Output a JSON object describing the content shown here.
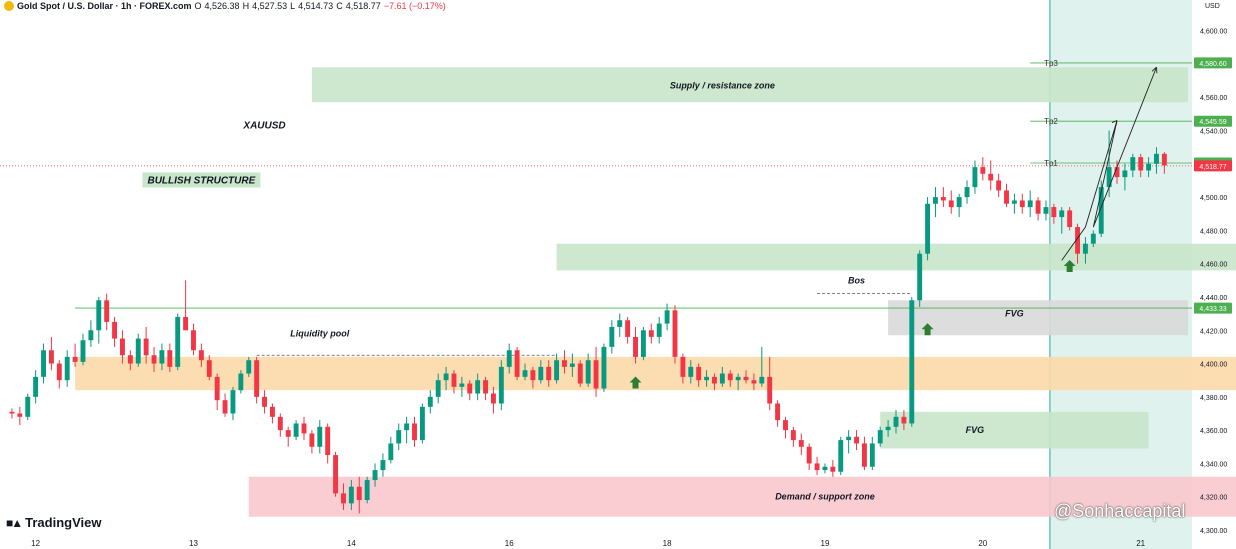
{
  "header": {
    "symbol": "Gold Spot / U.S. Dollar · 1h · FOREX.com",
    "o_label": "O",
    "o": "4,526.38",
    "h_label": "H",
    "h": "4,527.53",
    "l_label": "L",
    "l": "4,514.73",
    "c_label": "C",
    "c": "4,518.77",
    "change": "−7.61 (−0.17%)"
  },
  "branding": {
    "logo": "TradingView",
    "watermark": "@Sonhaccapital"
  },
  "chart_data": {
    "type": "candlestick",
    "currency": "USD",
    "ylim": [
      4300,
      4610
    ],
    "y_ticks": [
      "4,300.00",
      "4,320.00",
      "4,340.00",
      "4,360.00",
      "4,380.00",
      "4,400.00",
      "4,420.00",
      "4,440.00",
      "4,460.00",
      "4,480.00",
      "4,500.00",
      "4,520.00",
      "4,540.00",
      "4,560.00",
      "4,580.00",
      "4,600.00"
    ],
    "x_ticks": [
      {
        "label": "12",
        "bar": 3
      },
      {
        "label": "13",
        "bar": 23
      },
      {
        "label": "14",
        "bar": 43
      },
      {
        "label": "16",
        "bar": 63
      },
      {
        "label": "18",
        "bar": 83
      },
      {
        "label": "19",
        "bar": 103
      },
      {
        "label": "20",
        "bar": 123
      },
      {
        "label": "21",
        "bar": 143
      }
    ],
    "price_badges": [
      {
        "label": "4,580.60",
        "value": 4580.6,
        "color": "#4caf50"
      },
      {
        "label": "4,545.59",
        "value": 4545.59,
        "color": "#4caf50"
      },
      {
        "label": "4,520.50",
        "value": 4520.5,
        "color": "#4caf50"
      },
      {
        "label": "4,518.77",
        "value": 4518.77,
        "color": "#f23645"
      },
      {
        "label": "4,433.33",
        "value": 4433.33,
        "color": "#4caf50"
      }
    ],
    "candles": [
      [
        4371,
        4373,
        4367,
        4370
      ],
      [
        4370,
        4374,
        4363,
        4368
      ],
      [
        4368,
        4382,
        4366,
        4380
      ],
      [
        4380,
        4396,
        4376,
        4392
      ],
      [
        4392,
        4412,
        4388,
        4408
      ],
      [
        4408,
        4416,
        4396,
        4400
      ],
      [
        4400,
        4402,
        4385,
        4390
      ],
      [
        4390,
        4408,
        4386,
        4404
      ],
      [
        4404,
        4412,
        4398,
        4401
      ],
      [
        4401,
        4418,
        4399,
        4414
      ],
      [
        4414,
        4426,
        4410,
        4420
      ],
      [
        4420,
        4440,
        4412,
        4438
      ],
      [
        4438,
        4442,
        4420,
        4425
      ],
      [
        4425,
        4428,
        4410,
        4415
      ],
      [
        4415,
        4420,
        4400,
        4405
      ],
      [
        4405,
        4408,
        4396,
        4400
      ],
      [
        4400,
        4418,
        4398,
        4415
      ],
      [
        4415,
        4422,
        4400,
        4405
      ],
      [
        4405,
        4410,
        4395,
        4400
      ],
      [
        4400,
        4412,
        4396,
        4408
      ],
      [
        4408,
        4412,
        4395,
        4398
      ],
      [
        4398,
        4430,
        4396,
        4428
      ],
      [
        4428,
        4450,
        4420,
        4420
      ],
      [
        4420,
        4424,
        4405,
        4408
      ],
      [
        4408,
        4412,
        4398,
        4402
      ],
      [
        4402,
        4405,
        4390,
        4392
      ],
      [
        4392,
        4394,
        4372,
        4378
      ],
      [
        4378,
        4382,
        4368,
        4370
      ],
      [
        4370,
        4386,
        4366,
        4384
      ],
      [
        4384,
        4396,
        4382,
        4394
      ],
      [
        4394,
        4404,
        4392,
        4402
      ],
      [
        4402,
        4404,
        4376,
        4380
      ],
      [
        4380,
        4384,
        4370,
        4374
      ],
      [
        4374,
        4376,
        4364,
        4368
      ],
      [
        4368,
        4370,
        4356,
        4360
      ],
      [
        4360,
        4362,
        4350,
        4356
      ],
      [
        4356,
        4366,
        4354,
        4364
      ],
      [
        4364,
        4368,
        4354,
        4358
      ],
      [
        4358,
        4360,
        4346,
        4350
      ],
      [
        4350,
        4366,
        4346,
        4362
      ],
      [
        4362,
        4364,
        4340,
        4345
      ],
      [
        4345,
        4347,
        4320,
        4322
      ],
      [
        4322,
        4328,
        4312,
        4316
      ],
      [
        4316,
        4330,
        4312,
        4326
      ],
      [
        4326,
        4332,
        4310,
        4318
      ],
      [
        4318,
        4332,
        4316,
        4330
      ],
      [
        4330,
        4340,
        4326,
        4336
      ],
      [
        4336,
        4346,
        4332,
        4342
      ],
      [
        4342,
        4356,
        4340,
        4352
      ],
      [
        4352,
        4364,
        4348,
        4360
      ],
      [
        4360,
        4368,
        4352,
        4364
      ],
      [
        4364,
        4368,
        4350,
        4354
      ],
      [
        4354,
        4376,
        4352,
        4374
      ],
      [
        4374,
        4384,
        4370,
        4380
      ],
      [
        4380,
        4394,
        4376,
        4390
      ],
      [
        4390,
        4398,
        4384,
        4394
      ],
      [
        4394,
        4396,
        4382,
        4386
      ],
      [
        4386,
        4392,
        4380,
        4388
      ],
      [
        4388,
        4390,
        4378,
        4382
      ],
      [
        4382,
        4394,
        4378,
        4390
      ],
      [
        4390,
        4392,
        4378,
        4382
      ],
      [
        4382,
        4386,
        4370,
        4376
      ],
      [
        4376,
        4402,
        4372,
        4398
      ],
      [
        4398,
        4412,
        4394,
        4408
      ],
      [
        4408,
        4410,
        4390,
        4392
      ],
      [
        4392,
        4400,
        4390,
        4396
      ],
      [
        4396,
        4398,
        4385,
        4390
      ],
      [
        4390,
        4402,
        4388,
        4398
      ],
      [
        4398,
        4402,
        4386,
        4390
      ],
      [
        4390,
        4406,
        4388,
        4402
      ],
      [
        4402,
        4408,
        4394,
        4398
      ],
      [
        4398,
        4406,
        4392,
        4400
      ],
      [
        4400,
        4402,
        4386,
        4388
      ],
      [
        4388,
        4406,
        4386,
        4402
      ],
      [
        4402,
        4410,
        4380,
        4385
      ],
      [
        4385,
        4412,
        4383,
        4410
      ],
      [
        4410,
        4426,
        4406,
        4422
      ],
      [
        4422,
        4430,
        4416,
        4426
      ],
      [
        4426,
        4428,
        4412,
        4416
      ],
      [
        4416,
        4422,
        4400,
        4404
      ],
      [
        4404,
        4422,
        4402,
        4420
      ],
      [
        4420,
        4424,
        4412,
        4416
      ],
      [
        4416,
        4428,
        4412,
        4424
      ],
      [
        4424,
        4436,
        4420,
        4432
      ],
      [
        4432,
        4435,
        4400,
        4404
      ],
      [
        4404,
        4406,
        4388,
        4392
      ],
      [
        4392,
        4402,
        4388,
        4398
      ],
      [
        4398,
        4400,
        4386,
        4390
      ],
      [
        4390,
        4396,
        4386,
        4392
      ],
      [
        4392,
        4394,
        4384,
        4388
      ],
      [
        4388,
        4398,
        4386,
        4394
      ],
      [
        4394,
        4396,
        4386,
        4390
      ],
      [
        4390,
        4394,
        4384,
        4392
      ],
      [
        4392,
        4396,
        4388,
        4390
      ],
      [
        4390,
        4394,
        4384,
        4388
      ],
      [
        4388,
        4410,
        4386,
        4392
      ],
      [
        4392,
        4404,
        4372,
        4376
      ],
      [
        4376,
        4378,
        4362,
        4366
      ],
      [
        4366,
        4368,
        4355,
        4360
      ],
      [
        4360,
        4362,
        4350,
        4354
      ],
      [
        4354,
        4358,
        4345,
        4350
      ],
      [
        4350,
        4352,
        4336,
        4340
      ],
      [
        4340,
        4344,
        4333,
        4336
      ],
      [
        4336,
        4340,
        4334,
        4338
      ],
      [
        4338,
        4342,
        4332,
        4335
      ],
      [
        4335,
        4356,
        4333,
        4354
      ],
      [
        4354,
        4360,
        4346,
        4356
      ],
      [
        4356,
        4360,
        4348,
        4352
      ],
      [
        4352,
        4356,
        4336,
        4338
      ],
      [
        4338,
        4356,
        4336,
        4352
      ],
      [
        4352,
        4362,
        4350,
        4360
      ],
      [
        4360,
        4366,
        4356,
        4362
      ],
      [
        4362,
        4372,
        4358,
        4368
      ],
      [
        4368,
        4372,
        4360,
        4364
      ],
      [
        4364,
        4440,
        4362,
        4438
      ],
      [
        4438,
        4468,
        4434,
        4466
      ],
      [
        4466,
        4500,
        4462,
        4496
      ],
      [
        4496,
        4506,
        4488,
        4500
      ],
      [
        4500,
        4506,
        4494,
        4498
      ],
      [
        4498,
        4504,
        4490,
        4494
      ],
      [
        4494,
        4502,
        4488,
        4500
      ],
      [
        4500,
        4510,
        4496,
        4506
      ],
      [
        4506,
        4522,
        4502,
        4518
      ],
      [
        4518,
        4524,
        4510,
        4514
      ],
      [
        4514,
        4522,
        4504,
        4510
      ],
      [
        4510,
        4514,
        4500,
        4504
      ],
      [
        4504,
        4508,
        4494,
        4496
      ],
      [
        4496,
        4502,
        4490,
        4498
      ],
      [
        4498,
        4502,
        4490,
        4494
      ],
      [
        4494,
        4504,
        4488,
        4498
      ],
      [
        4498,
        4500,
        4486,
        4490
      ],
      [
        4490,
        4498,
        4486,
        4494
      ],
      [
        4494,
        4496,
        4484,
        4488
      ],
      [
        4488,
        4494,
        4478,
        4492
      ],
      [
        4492,
        4494,
        4480,
        4482
      ],
      [
        4482,
        4484,
        4460,
        4466
      ],
      [
        4466,
        4476,
        4460,
        4472
      ],
      [
        4472,
        4480,
        4470,
        4478
      ],
      [
        4478,
        4510,
        4476,
        4506
      ],
      [
        4506,
        4540,
        4500,
        4518
      ],
      [
        4518,
        4522,
        4508,
        4512
      ],
      [
        4512,
        4520,
        4504,
        4516
      ],
      [
        4516,
        4526,
        4512,
        4524
      ],
      [
        4524,
        4526,
        4512,
        4516
      ],
      [
        4516,
        4524,
        4512,
        4520
      ],
      [
        4520,
        4530,
        4514,
        4526
      ],
      [
        4526,
        4527,
        4514,
        4519
      ]
    ],
    "zones": [
      {
        "label": "Supply / resistance zone",
        "bar_start": 38,
        "bar_end": 149,
        "top": 4578,
        "bottom": 4557,
        "fill": "#c8e6c9",
        "label_bar": 90,
        "label_value": 4567
      },
      {
        "label": "",
        "bar_start": 69,
        "bar_end": 156,
        "top": 4472,
        "bottom": 4456,
        "fill": "#c8e6c9"
      },
      {
        "label": "FVG",
        "bar_start": 111,
        "bar_end": 149,
        "top": 4438,
        "bottom": 4417,
        "fill": "#d9d9d9",
        "label_bar": 127,
        "label_value": 4430
      },
      {
        "label": "",
        "bar_start": 8,
        "bar_end": 166,
        "top": 4404,
        "bottom": 4384,
        "fill": "#fcd9a8"
      },
      {
        "label": "FVG",
        "bar_start": 110,
        "bar_end": 144,
        "top": 4371,
        "bottom": 4349,
        "fill": "#c8e6c9",
        "label_bar": 122,
        "label_value": 4360
      },
      {
        "label": "Demand / support zone",
        "bar_start": 30,
        "bar_end": 161,
        "top": 4332,
        "bottom": 4308,
        "fill": "#f8c8cc",
        "label_bar": 103,
        "label_value": 4320
      }
    ],
    "annotations": [
      {
        "label": "XAUUSD",
        "bar": 32,
        "value": 4543,
        "style": "plain"
      },
      {
        "label": "BULLISH STRUCTURE",
        "bar": 24,
        "value": 4510,
        "style": "boxed"
      },
      {
        "label": "Liquidity  pool",
        "bar": 39,
        "value": 4418,
        "style": "plain"
      },
      {
        "label": "Bos",
        "bar": 107,
        "value": 4450,
        "style": "plain"
      }
    ],
    "target_lines": [
      {
        "label": "Tp3",
        "value": 4580.6,
        "bar_start": 129
      },
      {
        "label": "Tp2",
        "value": 4545.59,
        "bar_start": 129
      },
      {
        "label": "Tp1",
        "value": 4520.5,
        "bar_start": 129
      }
    ],
    "resistance_line": {
      "value": 4433.33,
      "bar_start": 8
    },
    "current_price_line": 4518.77,
    "liquidity_line": {
      "value": 4405,
      "bar_start": 31,
      "bar_end": 69
    },
    "bos_line": {
      "value": 4442,
      "bar_start": 102,
      "bar_end": 114
    },
    "up_arrows": [
      {
        "bar": 79,
        "value": 4388
      },
      {
        "bar": 116,
        "value": 4420
      },
      {
        "bar": 134,
        "value": 4458
      }
    ],
    "projection": [
      [
        133,
        4462
      ],
      [
        136,
        4482
      ],
      [
        140,
        4546
      ],
      [
        137,
        4482
      ],
      [
        145,
        4578
      ]
    ],
    "highlight_region": {
      "bar_start": 132,
      "color": "#dff2ee"
    }
  }
}
